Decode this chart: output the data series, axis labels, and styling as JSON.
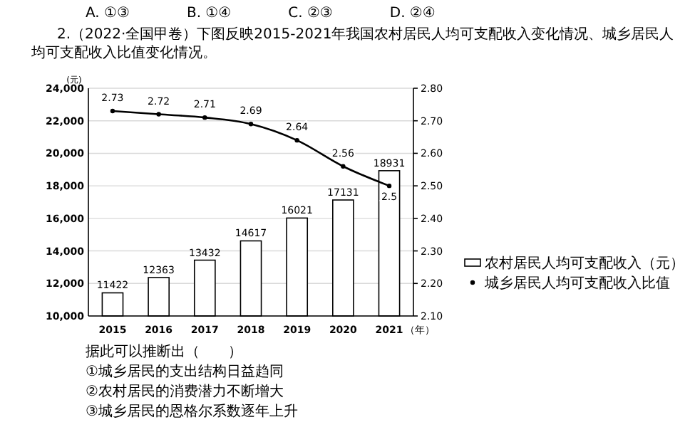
{
  "chart_data": {
    "type": "bar",
    "title": "2.（2022·全国甲卷）下图反映2015-2021年我国农村居民人均可支配收入变化情况、城乡居民人均可支配收入比值变化情况。",
    "ylabel": "(元)",
    "xlabel": "（年）",
    "categories": [
      "2015",
      "2016",
      "2017",
      "2018",
      "2019",
      "2020",
      "2021"
    ],
    "series": [
      {
        "name": "农村居民人均可支配收入（元）",
        "color": "#ffffff",
        "values": [
          11422,
          12363,
          13432,
          14617,
          16021,
          17131,
          18931
        ]
      },
      {
        "name": "城乡居民人均可支配收入比值",
        "type": "line",
        "axis": "y2",
        "color": "#000000",
        "values": [
          2.73,
          2.72,
          2.71,
          2.69,
          2.64,
          2.56,
          2.5
        ]
      }
    ],
    "ylim": [
      10000,
      24000
    ],
    "yticks": [
      {
        "value": 10000,
        "label": "10,000"
      },
      {
        "value": 12000,
        "label": "12,000"
      },
      {
        "value": 14000,
        "label": "14,000"
      },
      {
        "value": 16000,
        "label": "16,000"
      },
      {
        "value": 18000,
        "label": "18,000"
      },
      {
        "value": 20000,
        "label": "20,000"
      },
      {
        "value": 22000,
        "label": "22,000"
      },
      {
        "value": 24000,
        "label": "24,000"
      }
    ],
    "y2lim": [
      2.1,
      2.8
    ],
    "y2ticks": [
      {
        "value": 2.1,
        "label": "2.10"
      },
      {
        "value": 2.2,
        "label": "2.20"
      },
      {
        "value": 2.3,
        "label": "2.30"
      },
      {
        "value": 2.4,
        "label": "2.40"
      },
      {
        "value": 2.5,
        "label": "2.50"
      },
      {
        "value": 2.6,
        "label": "2.60"
      },
      {
        "value": 2.7,
        "label": "2.70"
      },
      {
        "value": 2.8,
        "label": "2.80"
      }
    ],
    "grid": "y",
    "legend": "right",
    "marker": "circle",
    "line_style": "solid",
    "data_labels": true,
    "annotations": [
      "A. ①③　　　　B. ①④　　　　C. ②③　　　　D. ②④",
      "据此可以推断出（　　）",
      "①城乡居民的支出结构日益趋同",
      "②农村居民的消费潜力不断增大",
      "③城乡居民的恩格尔系数逐年上升"
    ]
  }
}
